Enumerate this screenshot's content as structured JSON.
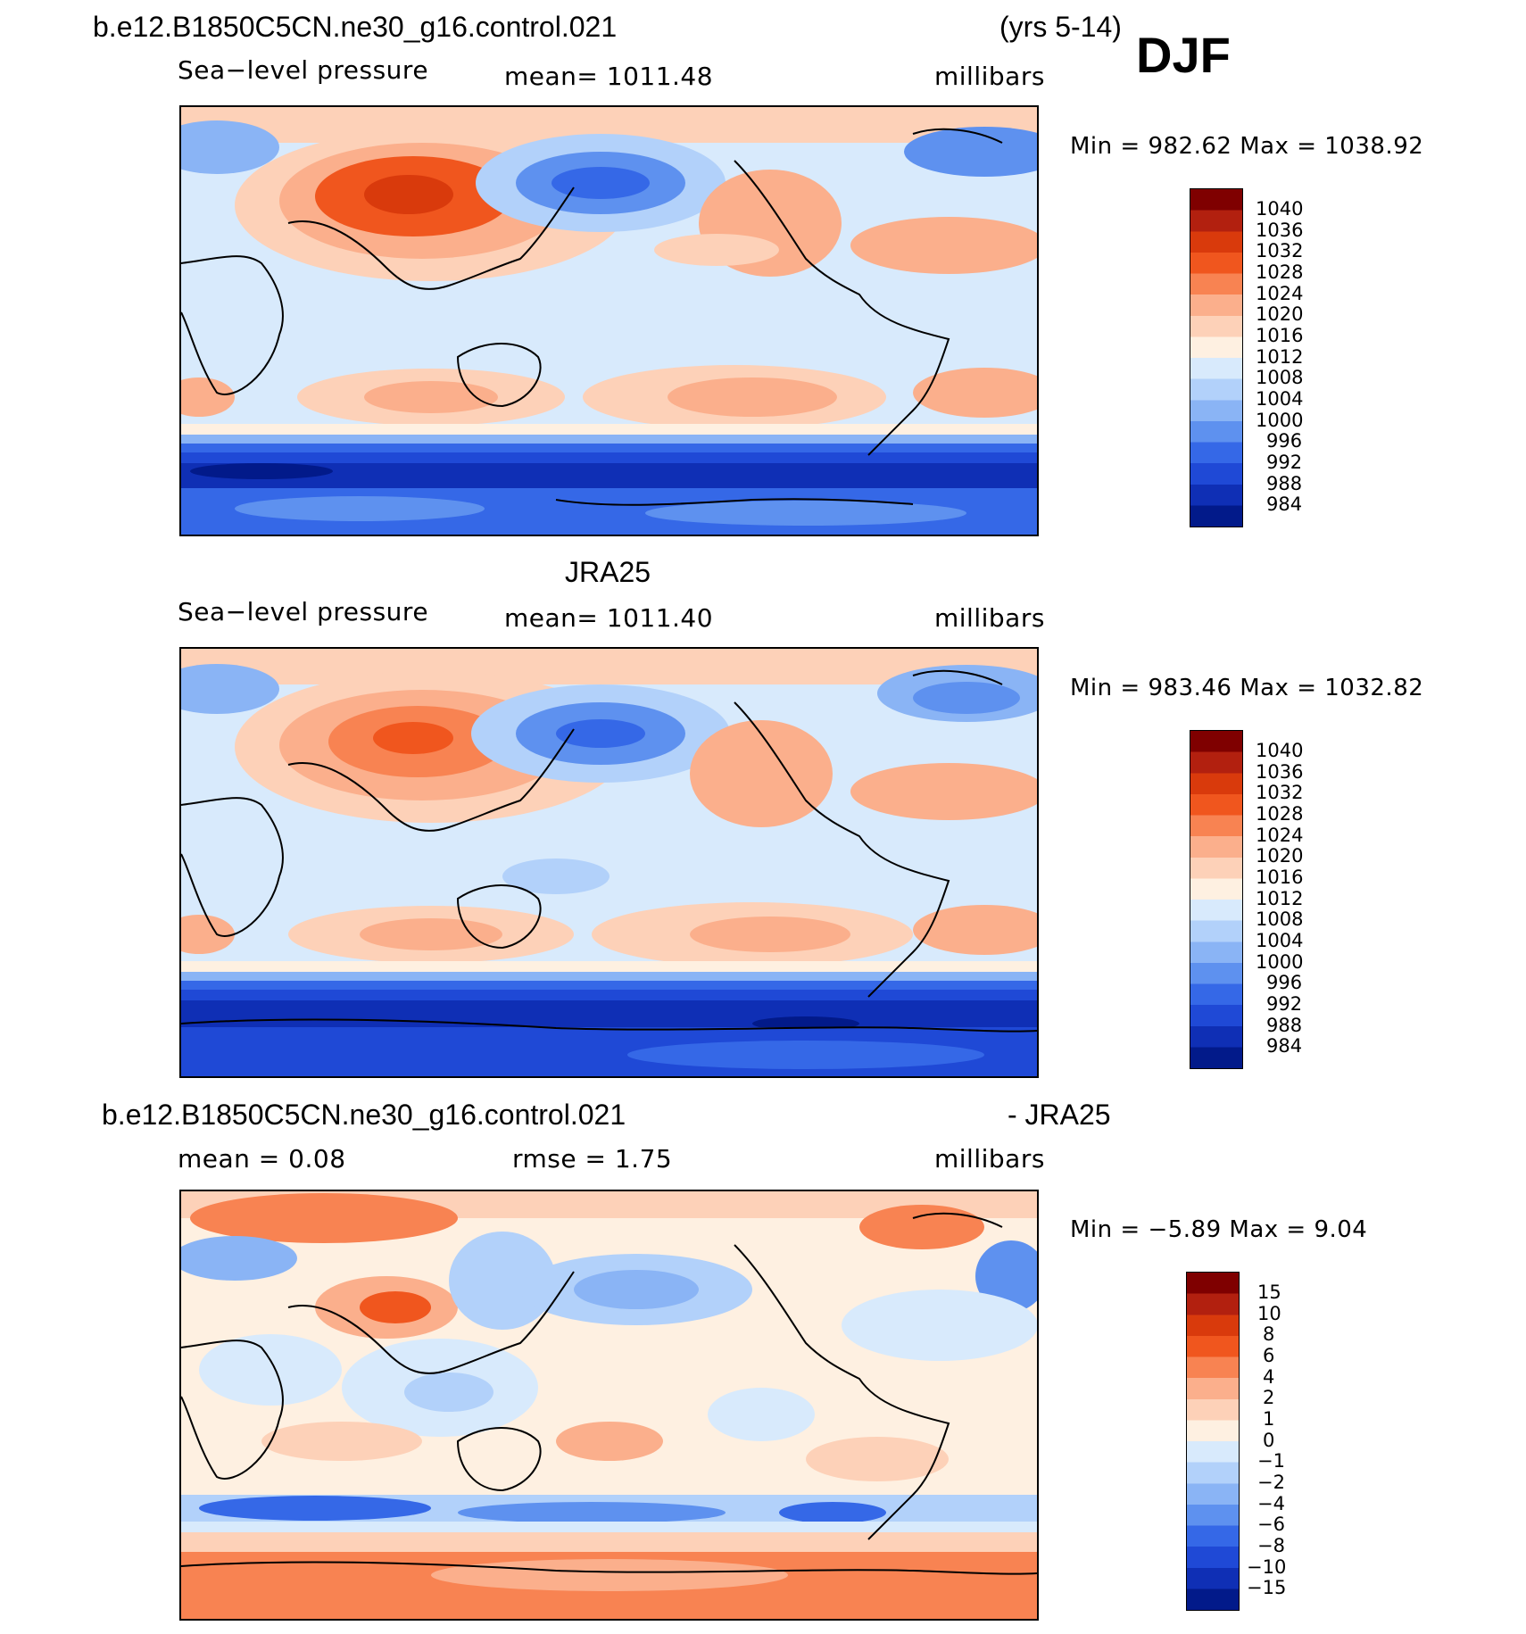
{
  "season": "DJF",
  "colors": {
    "pressure_palette": [
      "#ffffff"
    ],
    "pressure_reds": [
      "#7f0000",
      "#b2200f",
      "#d93a0c",
      "#f0561e",
      "#f88352",
      "#fbaf8c",
      "#fdd1b8",
      "#fef0e1"
    ],
    "pressure_blues": [
      "#d8eafc",
      "#b2d1fa",
      "#8ab4f5",
      "#5e91ef",
      "#3568e7",
      "#1f49d6",
      "#0f2fb5",
      "#021a8a"
    ]
  },
  "panels": [
    {
      "title_left": "b.e12.B1850C5CN.ne30_g16.control.021",
      "title_right": "(yrs 5-14)",
      "sub_left": "Sea−level pressure",
      "sub_center": "mean=  1011.48",
      "sub_right": "millibars",
      "min_max": "Min  =  982.62  Max  =  1038.92",
      "map_name": "model-slp-map",
      "chart_data": {
        "type": "heatmap",
        "title": "b.e12.B1850C5CN.ne30_g16.control.021 (yrs 5-14) DJF Sea-level pressure",
        "variable": "Sea-level pressure",
        "units": "millibars",
        "mean": 1011.48,
        "min": 982.62,
        "max": 1038.92,
        "colorbar_levels": [
          "1040",
          "1036",
          "1032",
          "1028",
          "1024",
          "1020",
          "1016",
          "1012",
          "1008",
          "1004",
          "1000",
          "996",
          "992",
          "988",
          "984"
        ]
      }
    },
    {
      "title_center": "JRA25",
      "sub_left": "Sea−level pressure",
      "sub_center": "mean=  1011.40",
      "sub_right": "millibars",
      "min_max": "Min  =  983.46  Max  =  1032.82",
      "map_name": "jra25-slp-map",
      "chart_data": {
        "type": "heatmap",
        "title": "JRA25 Sea-level pressure",
        "variable": "Sea-level pressure",
        "units": "millibars",
        "mean": 1011.4,
        "min": 983.46,
        "max": 1032.82,
        "colorbar_levels": [
          "1040",
          "1036",
          "1032",
          "1028",
          "1024",
          "1020",
          "1016",
          "1012",
          "1008",
          "1004",
          "1000",
          "996",
          "992",
          "988",
          "984"
        ]
      }
    },
    {
      "title_left": "b.e12.B1850C5CN.ne30_g16.control.021",
      "title_right": "- JRA25",
      "sub_left": "mean  =     0.08",
      "sub_center": "rmse  =     1.75",
      "sub_right": "millibars",
      "min_max": "Min  =    −5.89  Max  =     9.04",
      "map_name": "difference-slp-map",
      "chart_data": {
        "type": "heatmap",
        "title": "b.e12.B1850C5CN.ne30_g16.control.021 - JRA25",
        "units": "millibars",
        "mean": 0.08,
        "rmse": 1.75,
        "min": -5.89,
        "max": 9.04,
        "colorbar_levels": [
          "15",
          "10",
          "8",
          "6",
          "4",
          "2",
          "1",
          "0",
          "−1",
          "−2",
          "−4",
          "−6",
          "−8",
          "−10",
          "−15"
        ]
      }
    }
  ],
  "chart_data": [
    {
      "type": "heatmap",
      "title": "Model DJF Sea-level pressure",
      "units": "millibars",
      "mean": 1011.48,
      "min": 982.62,
      "max": 1038.92,
      "levels": [
        1040,
        1036,
        1032,
        1028,
        1024,
        1020,
        1016,
        1012,
        1008,
        1004,
        1000,
        996,
        992,
        988,
        984
      ]
    },
    {
      "type": "heatmap",
      "title": "JRA25 Sea-level pressure",
      "units": "millibars",
      "mean": 1011.4,
      "min": 983.46,
      "max": 1032.82,
      "levels": [
        1040,
        1036,
        1032,
        1028,
        1024,
        1020,
        1016,
        1012,
        1008,
        1004,
        1000,
        996,
        992,
        988,
        984
      ]
    },
    {
      "type": "heatmap",
      "title": "Model - JRA25",
      "units": "millibars",
      "mean": 0.08,
      "rmse": 1.75,
      "min": -5.89,
      "max": 9.04,
      "levels": [
        15,
        10,
        8,
        6,
        4,
        2,
        1,
        0,
        -1,
        -2,
        -4,
        -6,
        -8,
        -10,
        -15
      ]
    }
  ]
}
